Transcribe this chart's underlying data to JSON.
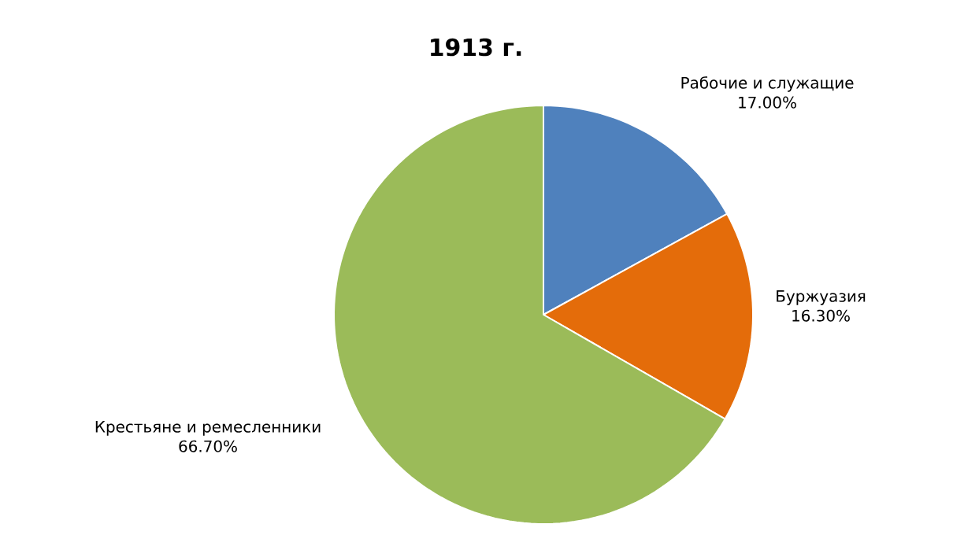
{
  "chart_data": {
    "type": "pie",
    "title": "1913 г.",
    "categories": [
      "Рабочие и служащие",
      "Буржуазия",
      "Крестьяне и ремесленники"
    ],
    "values": [
      17.0,
      16.3,
      66.7
    ],
    "value_labels": [
      "17.00%",
      "16.30%",
      "66.70%"
    ],
    "colors": [
      "#4f81bd",
      "#e46c0a",
      "#9bbb59"
    ]
  }
}
